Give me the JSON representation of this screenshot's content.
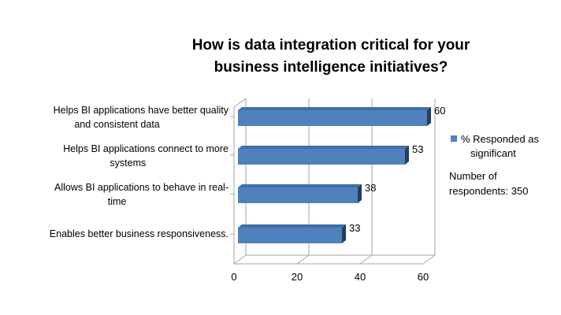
{
  "chart_data": {
    "type": "bar",
    "orientation": "horizontal",
    "style": "3d",
    "title": [
      "How is data integration critical for your",
      "business intelligence initiatives?"
    ],
    "categories": [
      [
        "Helps BI applications have better quality",
        "and consistent data"
      ],
      [
        "Helps BI applications connect to more",
        "systems"
      ],
      [
        "Allows BI applications to behave in real-",
        "time"
      ],
      [
        "Enables better business responsiveness."
      ]
    ],
    "series": [
      {
        "name": "% Responded as significant",
        "values": [
          60,
          53,
          38,
          33
        ]
      }
    ],
    "legend_lines": [
      "% Responded as",
      "significant"
    ],
    "xlim": [
      0,
      60
    ],
    "xticks": [
      "0",
      "20",
      "40",
      "60"
    ],
    "grid": "vertical",
    "legend_position": "right",
    "annotation": [
      "Number of",
      "respondents: 350"
    ],
    "colors": {
      "bar_front": "#4f81bd",
      "bar_top": "#3f6fa8",
      "bar_side": "#1f3f66",
      "axis": "#a6a6a6"
    }
  }
}
